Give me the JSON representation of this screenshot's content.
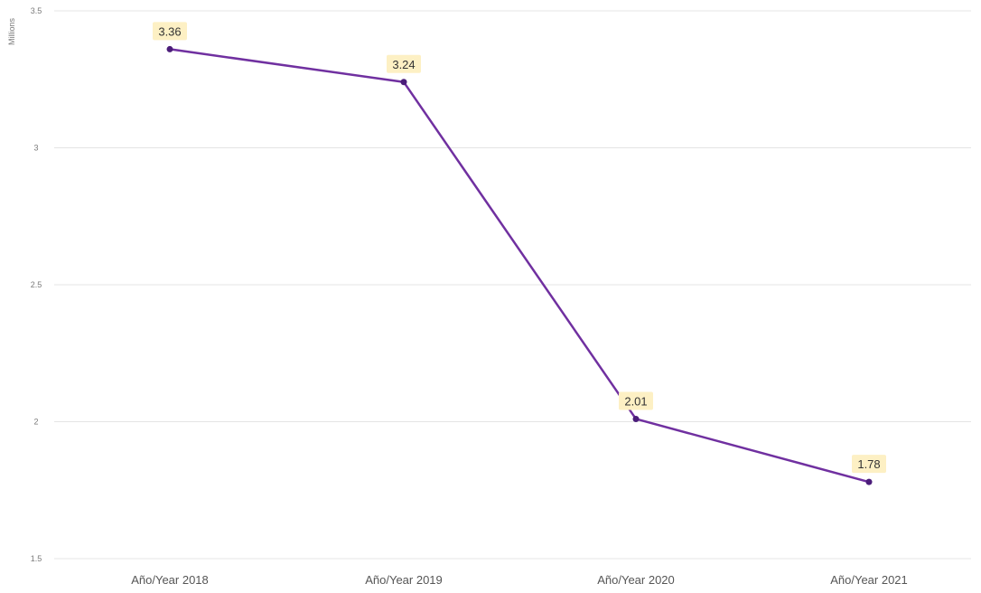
{
  "chart_data": {
    "type": "line",
    "ylabel": "Millions",
    "xlabel": "",
    "ylim": [
      1.5,
      3.5
    ],
    "yticks": [
      "1.5",
      "2",
      "2.5",
      "3",
      "3.5"
    ],
    "ytick_values": [
      1.5,
      2,
      2.5,
      3,
      3.5
    ],
    "categories": [
      "Año/Year 2018",
      "Año/Year 2019",
      "Año/Year 2020",
      "Año/Year 2021"
    ],
    "series": [
      {
        "values": [
          3.36,
          3.24,
          2.01,
          1.78
        ],
        "labels": [
          "3.36",
          "3.24",
          "2.01",
          "1.78"
        ]
      }
    ],
    "grid": true,
    "colors": {
      "line": "#7030a0",
      "marker": "#4b1d7a",
      "label_bg": "#fdf0c4",
      "grid": "#e4e4e4"
    }
  }
}
